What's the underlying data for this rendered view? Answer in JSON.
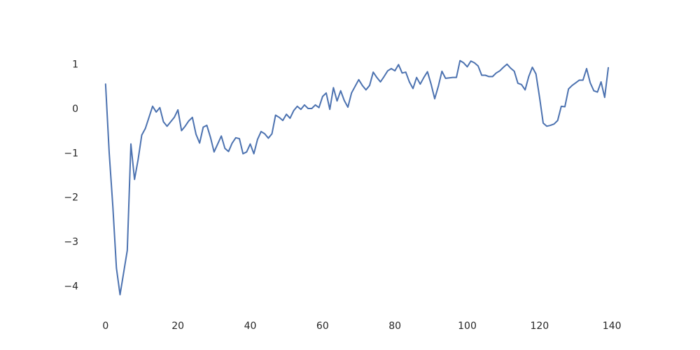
{
  "chart_data": {
    "type": "line",
    "title": "",
    "xlabel": "",
    "ylabel": "",
    "xlim": [
      -5,
      145
    ],
    "ylim": [
      -4.5,
      1.5
    ],
    "grid": false,
    "line_color": "#4c72b0",
    "x_ticks": [
      0,
      20,
      40,
      60,
      80,
      100,
      120,
      140
    ],
    "y_ticks": [
      1,
      0,
      -1,
      -2,
      -3,
      -4
    ],
    "x_tick_labels": [
      "0",
      "20",
      "40",
      "60",
      "80",
      "100",
      "120",
      "140"
    ],
    "y_tick_labels": [
      "1",
      "0",
      "−1",
      "−2",
      "−3",
      "−4"
    ],
    "series": [
      {
        "x": [
          0,
          1,
          2,
          3,
          4,
          5,
          6,
          7,
          8,
          9,
          10,
          11,
          12,
          13,
          14,
          15,
          16,
          17,
          18,
          19,
          20,
          21,
          22,
          23,
          24,
          25,
          26,
          27,
          28,
          29,
          30,
          31,
          32,
          33,
          34,
          35,
          36,
          37,
          38,
          39,
          40,
          41,
          42,
          43,
          44,
          45,
          46,
          47,
          48,
          49,
          50,
          51,
          52,
          53,
          54,
          55,
          56,
          57,
          58,
          59,
          60,
          61,
          62,
          63,
          64,
          65,
          66,
          67,
          68,
          69,
          70,
          71,
          72,
          73,
          74,
          75,
          76,
          77,
          78,
          79,
          80,
          81,
          82,
          83,
          84,
          85,
          86,
          87,
          88,
          89,
          90,
          91,
          92,
          93,
          94,
          95,
          96,
          97,
          98,
          99,
          100,
          101,
          102,
          103,
          104,
          105,
          106,
          107,
          108,
          109,
          110,
          111,
          112,
          113,
          114,
          115,
          116,
          117,
          118,
          119,
          120,
          121,
          122,
          123,
          124,
          125,
          126,
          127,
          128,
          129,
          130,
          131,
          132,
          133,
          134,
          135,
          136,
          137,
          138,
          139
        ],
        "values": [
          0.55,
          -1.0,
          -2.2,
          -3.6,
          -4.2,
          -3.7,
          -3.2,
          -0.8,
          -1.6,
          -1.15,
          -0.6,
          -0.45,
          -0.2,
          0.05,
          -0.08,
          0.02,
          -0.3,
          -0.4,
          -0.3,
          -0.2,
          -0.03,
          -0.5,
          -0.4,
          -0.28,
          -0.2,
          -0.58,
          -0.78,
          -0.42,
          -0.38,
          -0.65,
          -0.98,
          -0.8,
          -0.62,
          -0.9,
          -0.97,
          -0.78,
          -0.66,
          -0.68,
          -1.02,
          -0.98,
          -0.8,
          -1.02,
          -0.7,
          -0.52,
          -0.57,
          -0.67,
          -0.57,
          -0.15,
          -0.2,
          -0.27,
          -0.13,
          -0.22,
          -0.05,
          0.05,
          -0.02,
          0.08,
          0.0,
          0.0,
          0.08,
          0.02,
          0.27,
          0.35,
          -0.02,
          0.47,
          0.17,
          0.4,
          0.18,
          0.03,
          0.35,
          0.5,
          0.65,
          0.52,
          0.42,
          0.52,
          0.82,
          0.7,
          0.6,
          0.72,
          0.85,
          0.9,
          0.85,
          0.99,
          0.8,
          0.82,
          0.6,
          0.45,
          0.7,
          0.55,
          0.7,
          0.83,
          0.55,
          0.22,
          0.5,
          0.84,
          0.68,
          0.69,
          0.7,
          0.7,
          1.08,
          1.03,
          0.94,
          1.07,
          1.03,
          0.96,
          0.75,
          0.75,
          0.72,
          0.72,
          0.8,
          0.85,
          0.93,
          1.0,
          0.91,
          0.84,
          0.57,
          0.54,
          0.42,
          0.72,
          0.93,
          0.78,
          0.25,
          -0.33,
          -0.4,
          -0.38,
          -0.35,
          -0.27,
          0.05,
          0.04,
          0.44,
          0.52,
          0.58,
          0.64,
          0.64,
          0.9,
          0.58,
          0.4,
          0.37,
          0.6,
          0.25,
          0.92
        ]
      }
    ]
  }
}
